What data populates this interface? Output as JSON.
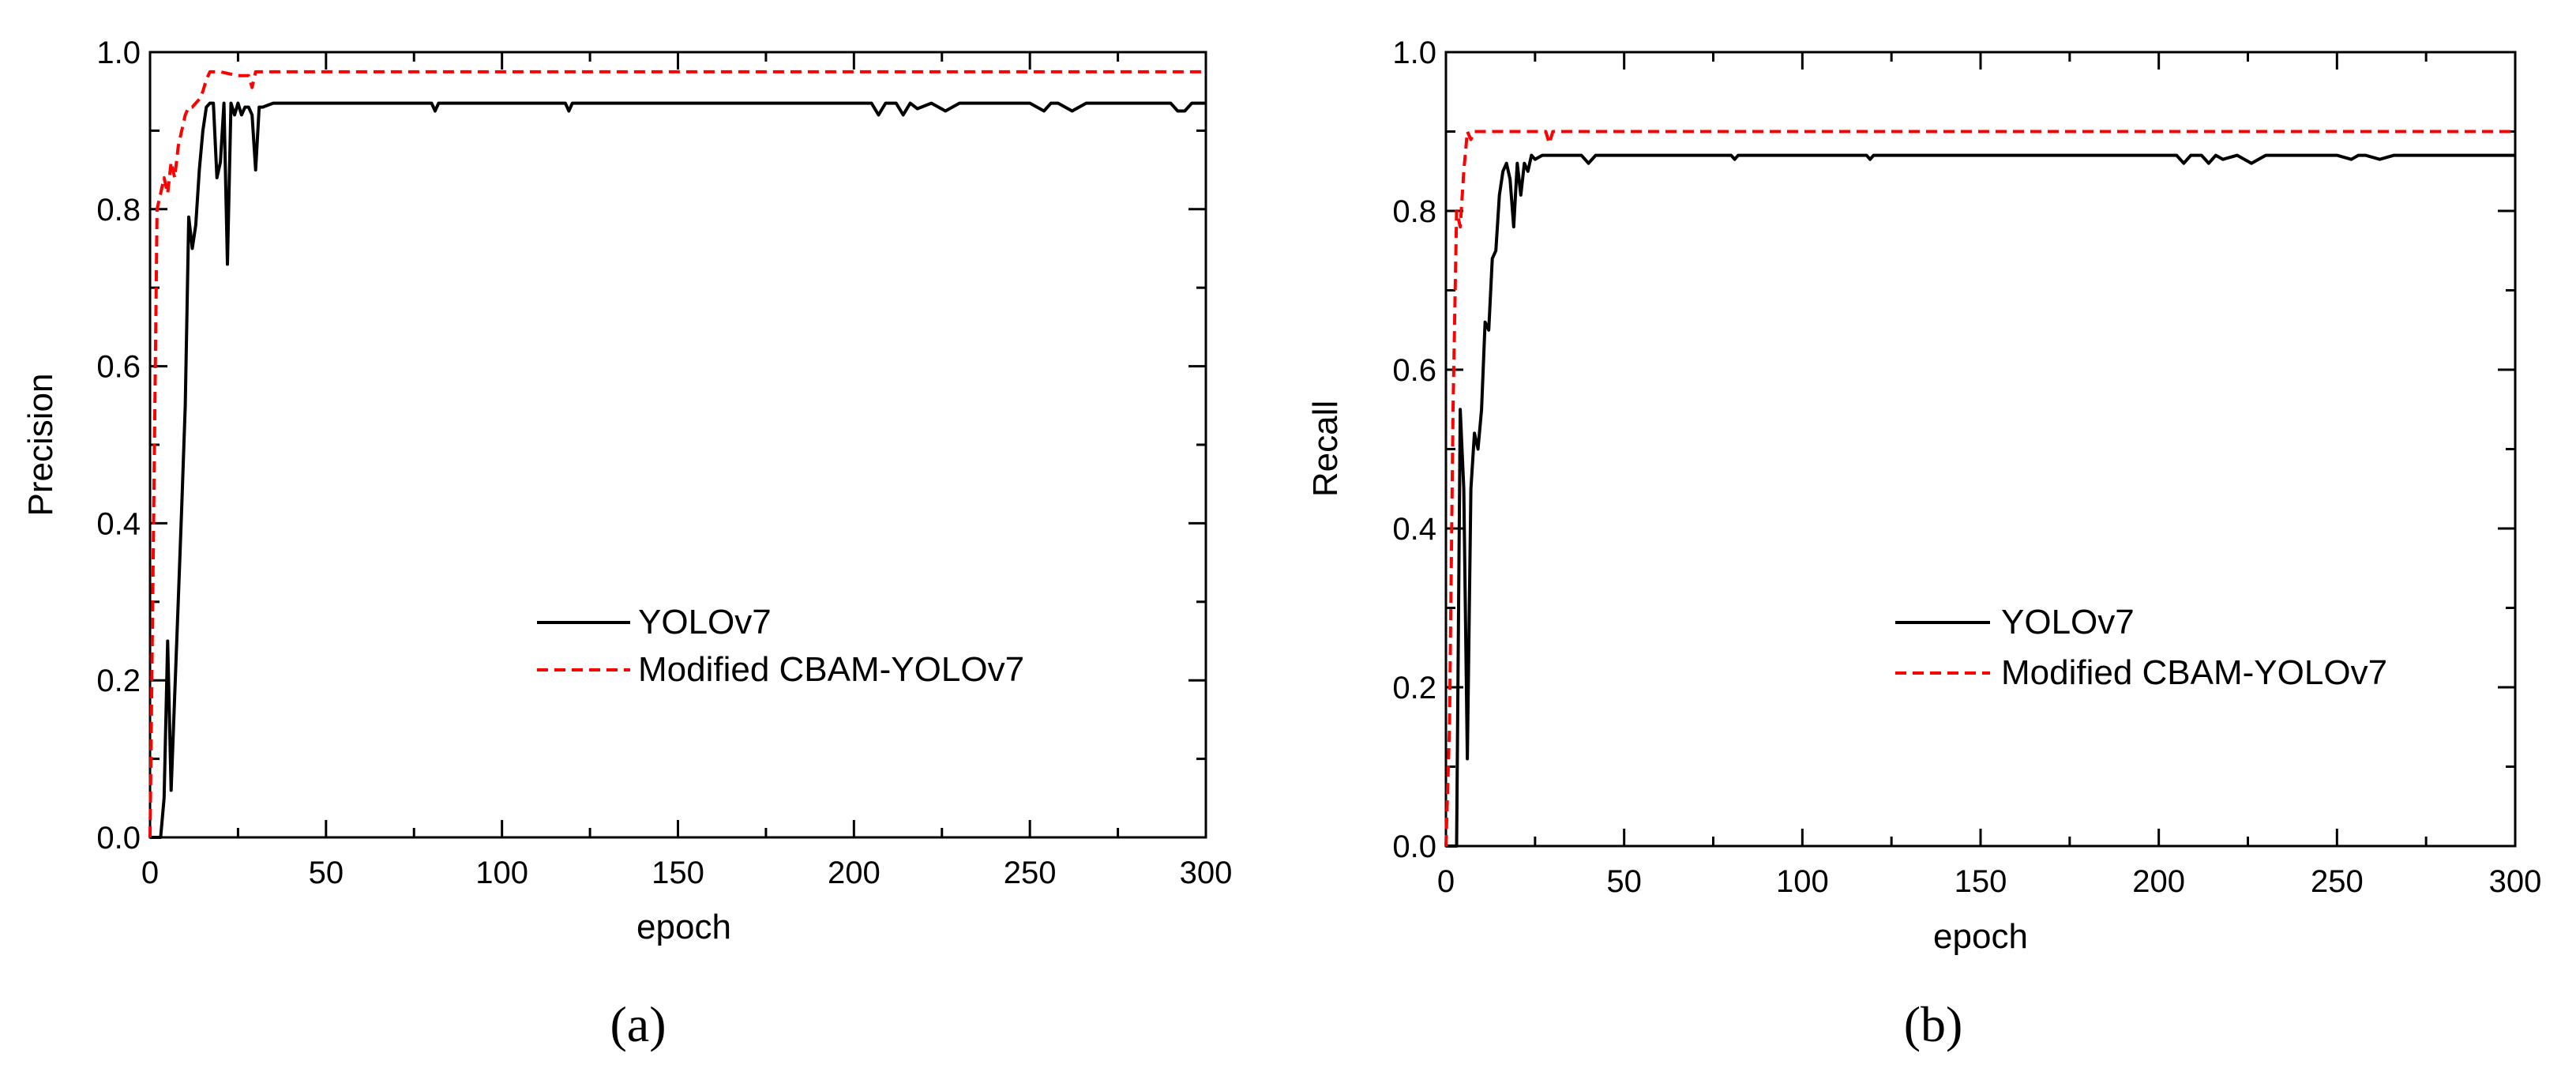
{
  "chart_data": [
    {
      "id": "a",
      "type": "line",
      "panel_label": "(a)",
      "xlabel": "epoch",
      "ylabel": "Precision",
      "xlim": [
        0,
        300
      ],
      "ylim": [
        0.0,
        1.0
      ],
      "xticks": [
        "0",
        "50",
        "100",
        "150",
        "200",
        "250",
        "300"
      ],
      "yticks": [
        "0.0",
        "0.2",
        "0.4",
        "0.6",
        "0.8",
        "1.0"
      ],
      "grid": false,
      "legend_position": "center-right",
      "series": [
        {
          "name": "YOLOv7",
          "color": "#000000",
          "style": "solid",
          "x": [
            0,
            2,
            3,
            4,
            5,
            6,
            7,
            8,
            9,
            10,
            11,
            12,
            13,
            14,
            15,
            16,
            17,
            18,
            19,
            20,
            21,
            22,
            23,
            24,
            25,
            26,
            27,
            28,
            29,
            30,
            31,
            32,
            35,
            40,
            50,
            80,
            81,
            82,
            100,
            118,
            119,
            120,
            150,
            200,
            205,
            207,
            209,
            212,
            214,
            216,
            218,
            222,
            226,
            230,
            250,
            254,
            256,
            258,
            262,
            266,
            270,
            280,
            290,
            292,
            294,
            296,
            300
          ],
          "y": [
            0.0,
            0.0,
            0.0,
            0.05,
            0.25,
            0.06,
            0.18,
            0.3,
            0.42,
            0.55,
            0.79,
            0.75,
            0.78,
            0.85,
            0.9,
            0.93,
            0.935,
            0.935,
            0.84,
            0.86,
            0.935,
            0.73,
            0.935,
            0.92,
            0.935,
            0.92,
            0.93,
            0.93,
            0.92,
            0.85,
            0.93,
            0.93,
            0.935,
            0.935,
            0.935,
            0.935,
            0.925,
            0.935,
            0.935,
            0.935,
            0.925,
            0.935,
            0.935,
            0.935,
            0.935,
            0.92,
            0.935,
            0.935,
            0.92,
            0.935,
            0.928,
            0.935,
            0.925,
            0.935,
            0.935,
            0.925,
            0.935,
            0.935,
            0.925,
            0.935,
            0.935,
            0.935,
            0.935,
            0.925,
            0.925,
            0.935,
            0.935
          ]
        },
        {
          "name": "Modified CBAM-YOLOv7",
          "color": "#ff0000",
          "style": "dashed",
          "x": [
            0,
            1,
            2,
            3,
            4,
            5,
            6,
            7,
            8,
            9,
            10,
            11,
            12,
            13,
            14,
            15,
            16,
            17,
            18,
            20,
            25,
            28,
            29,
            30,
            35,
            40,
            50,
            100,
            150,
            300
          ],
          "y": [
            0.0,
            0.4,
            0.8,
            0.82,
            0.84,
            0.82,
            0.86,
            0.84,
            0.88,
            0.9,
            0.92,
            0.93,
            0.93,
            0.935,
            0.94,
            0.95,
            0.965,
            0.975,
            0.975,
            0.975,
            0.97,
            0.97,
            0.955,
            0.975,
            0.975,
            0.975,
            0.975,
            0.975,
            0.975,
            0.975
          ]
        }
      ]
    },
    {
      "id": "b",
      "type": "line",
      "panel_label": "(b)",
      "xlabel": "epoch",
      "ylabel": "Recall",
      "xlim": [
        0,
        300
      ],
      "ylim": [
        0.0,
        1.0
      ],
      "xticks": [
        "0",
        "50",
        "100",
        "150",
        "200",
        "250",
        "300"
      ],
      "yticks": [
        "0.0",
        "0.2",
        "0.4",
        "0.6",
        "0.8",
        "1.0"
      ],
      "grid": false,
      "legend_position": "center-right",
      "series": [
        {
          "name": "YOLOv7",
          "color": "#000000",
          "style": "solid",
          "x": [
            0,
            2,
            3,
            4,
            5,
            6,
            7,
            8,
            9,
            10,
            11,
            12,
            13,
            14,
            15,
            16,
            17,
            18,
            19,
            20,
            21,
            22,
            23,
            24,
            25,
            27,
            30,
            35,
            38,
            40,
            42,
            44,
            50,
            80,
            81,
            82,
            100,
            118,
            119,
            120,
            150,
            200,
            205,
            207,
            209,
            212,
            214,
            216,
            218,
            222,
            226,
            230,
            250,
            254,
            256,
            258,
            262,
            266,
            270,
            290,
            300
          ],
          "y": [
            0.0,
            0.0,
            0.0,
            0.55,
            0.45,
            0.11,
            0.45,
            0.52,
            0.5,
            0.55,
            0.66,
            0.65,
            0.74,
            0.75,
            0.82,
            0.85,
            0.86,
            0.84,
            0.78,
            0.86,
            0.82,
            0.86,
            0.85,
            0.87,
            0.865,
            0.87,
            0.87,
            0.87,
            0.87,
            0.86,
            0.87,
            0.87,
            0.87,
            0.87,
            0.865,
            0.87,
            0.87,
            0.87,
            0.865,
            0.87,
            0.87,
            0.87,
            0.87,
            0.86,
            0.87,
            0.87,
            0.86,
            0.87,
            0.865,
            0.87,
            0.86,
            0.87,
            0.87,
            0.865,
            0.87,
            0.87,
            0.865,
            0.87,
            0.87,
            0.87,
            0.87
          ]
        },
        {
          "name": "Modified CBAM-YOLOv7",
          "color": "#ff0000",
          "style": "dashed",
          "x": [
            0,
            1,
            2,
            3,
            4,
            5,
            6,
            7,
            8,
            10,
            20,
            28,
            29,
            30,
            50,
            100,
            150,
            300
          ],
          "y": [
            0.0,
            0.15,
            0.55,
            0.8,
            0.78,
            0.85,
            0.9,
            0.89,
            0.9,
            0.9,
            0.9,
            0.9,
            0.885,
            0.9,
            0.9,
            0.9,
            0.9,
            0.9
          ]
        }
      ]
    }
  ]
}
